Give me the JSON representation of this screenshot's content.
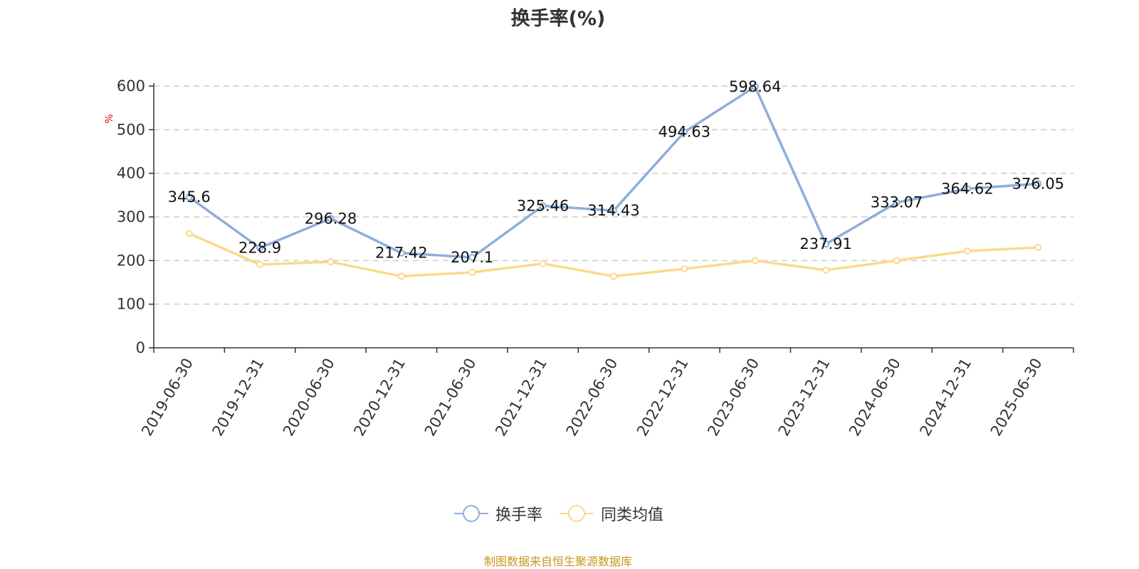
{
  "chart_data": {
    "type": "line",
    "title": "换手率(%)",
    "ylabel": "%",
    "ylim": [
      0,
      600
    ],
    "yticks": [
      0,
      100,
      200,
      300,
      400,
      500,
      600
    ],
    "grid": true,
    "legend_position": "bottom-center",
    "categories": [
      "2019-06-30",
      "2019-12-31",
      "2020-06-30",
      "2020-12-31",
      "2021-06-30",
      "2021-12-31",
      "2022-06-30",
      "2022-12-31",
      "2023-06-30",
      "2023-12-31",
      "2024-06-30",
      "2024-12-31",
      "2025-06-30"
    ],
    "series": [
      {
        "name": "换手率",
        "color": "#8eaedb",
        "labeled": true,
        "values": [
          345.6,
          228.9,
          296.28,
          217.42,
          207.1,
          325.46,
          314.43,
          494.63,
          598.64,
          237.91,
          333.07,
          364.62,
          376.05
        ]
      },
      {
        "name": "同类均值",
        "color": "#fcd88e",
        "labeled": false,
        "values": [
          262,
          191,
          197,
          164,
          173,
          193,
          164,
          181,
          200,
          178,
          200,
          222,
          230
        ]
      }
    ]
  },
  "source_note": "制图数据来自恒生聚源数据库"
}
